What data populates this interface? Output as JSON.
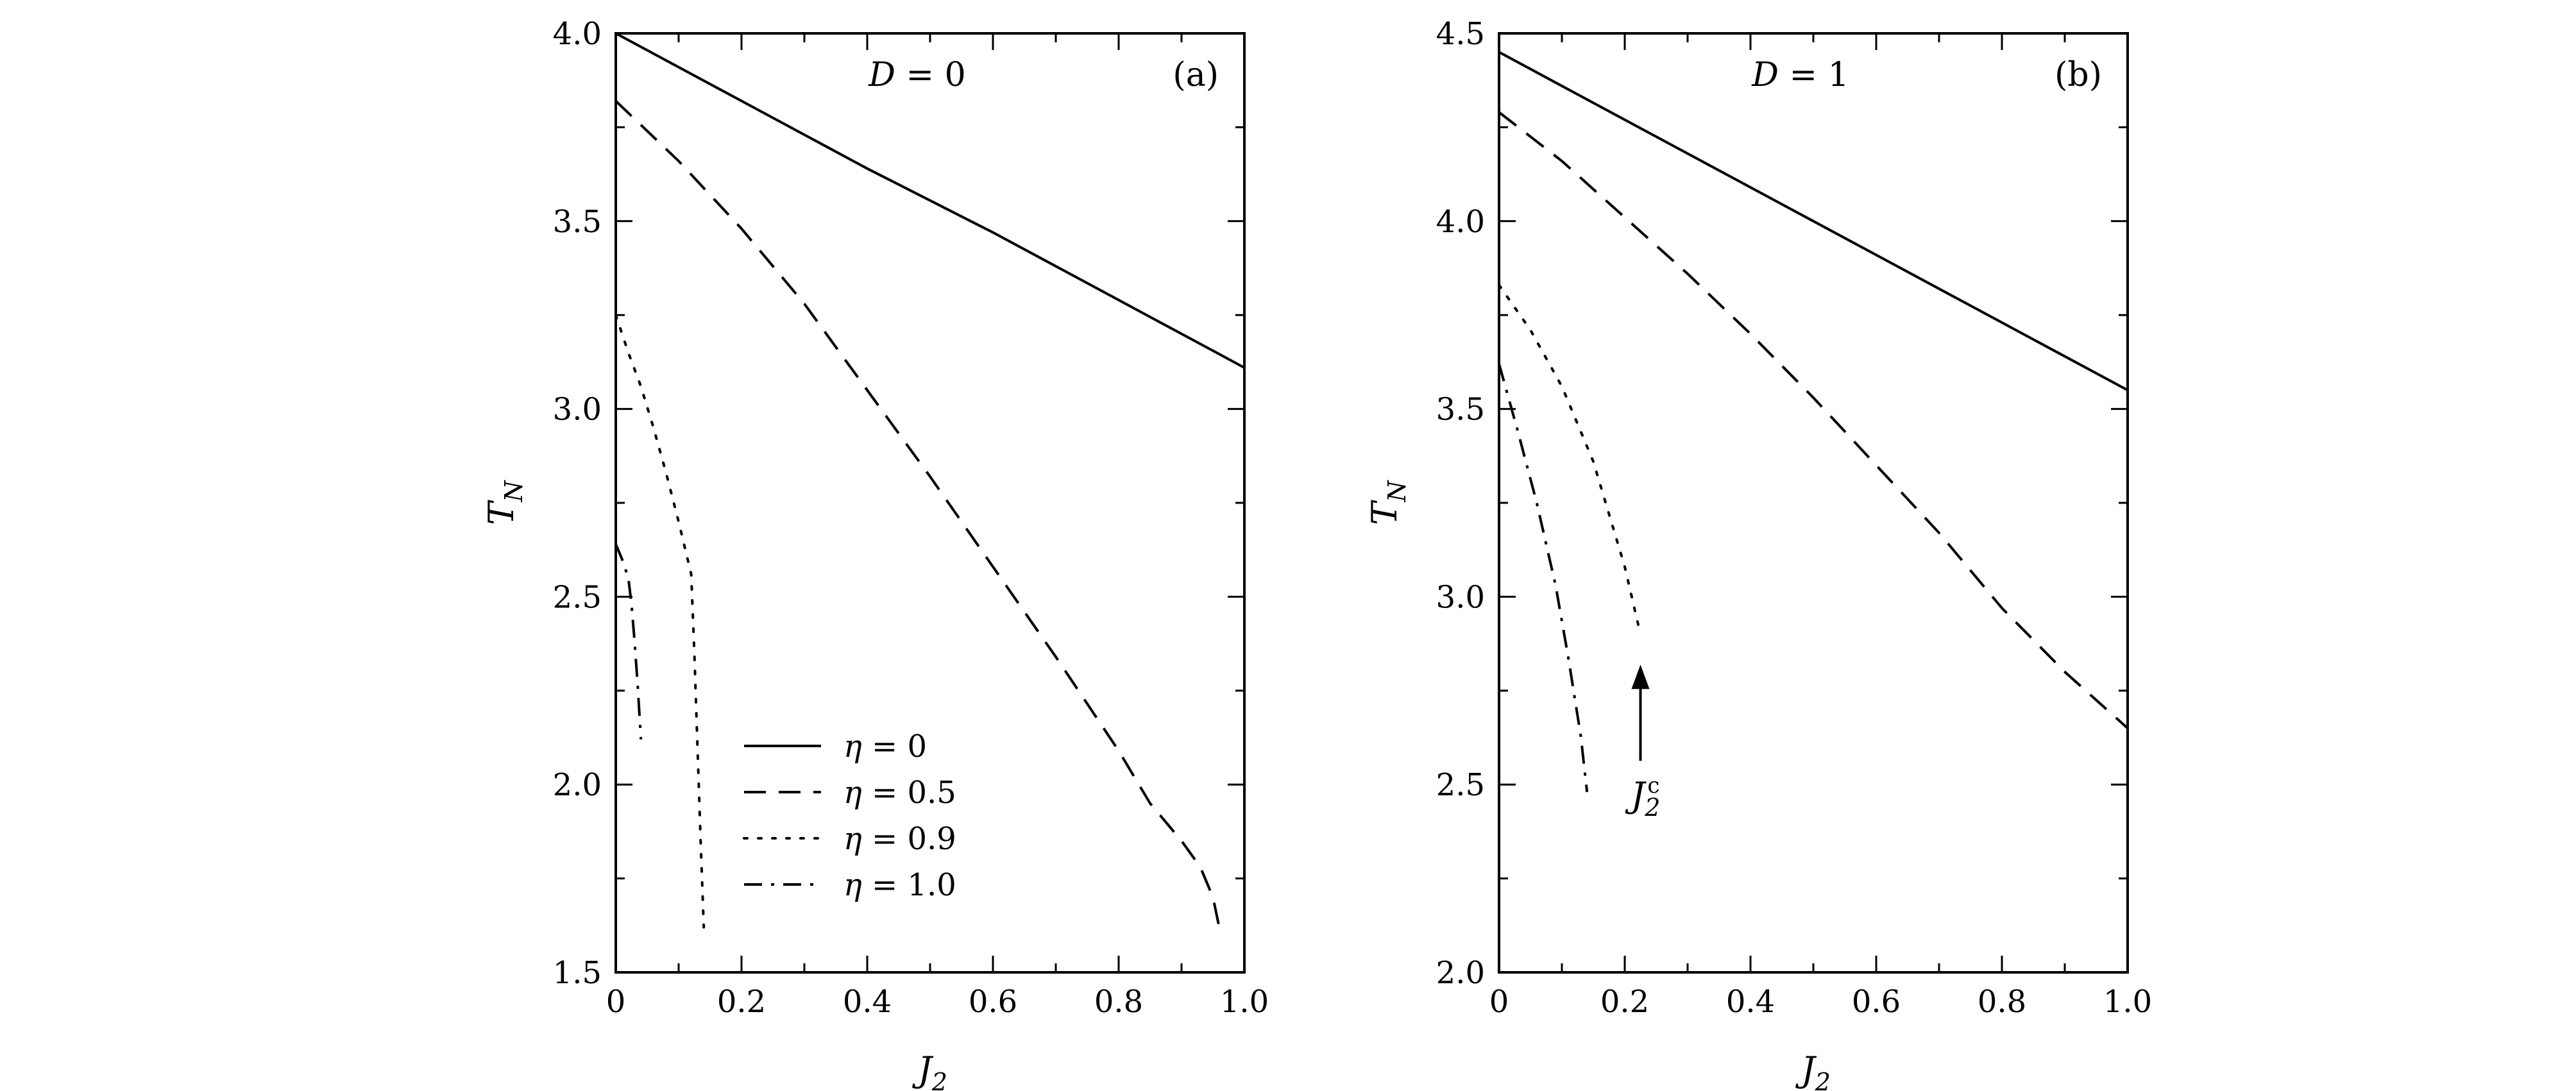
{
  "chart_data": [
    {
      "type": "line",
      "panel_label": "(a)",
      "condition": "D = 0",
      "xlabel": "J2",
      "ylabel": "TN",
      "xlim": [
        0,
        1.0
      ],
      "ylim": [
        1.5,
        4.0
      ],
      "x_ticks": [
        "0",
        "0.2",
        "0.4",
        "0.6",
        "0.8",
        "1.0"
      ],
      "y_ticks": [
        "1.5",
        "2.0",
        "2.5",
        "3.0",
        "3.5",
        "4.0"
      ],
      "legend_position": "lower-center",
      "series": [
        {
          "name": "η = 0",
          "style": "solid",
          "x": [
            0,
            0.2,
            0.4,
            0.6,
            0.8,
            1.0
          ],
          "y": [
            4.0,
            3.82,
            3.64,
            3.47,
            3.29,
            3.11
          ]
        },
        {
          "name": "η = 0.5",
          "style": "dashed",
          "x": [
            0,
            0.1,
            0.2,
            0.3,
            0.4,
            0.5,
            0.6,
            0.7,
            0.8,
            0.85,
            0.9,
            0.93,
            0.95,
            0.96
          ],
          "y": [
            3.82,
            3.66,
            3.48,
            3.28,
            3.05,
            2.82,
            2.58,
            2.34,
            2.09,
            1.95,
            1.85,
            1.78,
            1.7,
            1.62
          ]
        },
        {
          "name": "η = 0.9",
          "style": "dotted",
          "x": [
            0,
            0.02,
            0.04,
            0.06,
            0.08,
            0.1,
            0.12,
            0.125,
            0.13,
            0.135,
            0.14
          ],
          "y": [
            3.25,
            3.15,
            3.06,
            2.95,
            2.83,
            2.7,
            2.56,
            2.35,
            2.1,
            1.85,
            1.62
          ]
        },
        {
          "name": "η = 1.0",
          "style": "dashdot",
          "x": [
            0,
            0.01,
            0.02,
            0.025,
            0.03,
            0.035,
            0.04
          ],
          "y": [
            2.64,
            2.6,
            2.55,
            2.48,
            2.38,
            2.26,
            2.12
          ]
        }
      ]
    },
    {
      "type": "line",
      "panel_label": "(b)",
      "condition": "D = 1",
      "xlabel": "J2",
      "ylabel": "TN",
      "xlim": [
        0,
        1.0
      ],
      "ylim": [
        2.0,
        4.5
      ],
      "x_ticks": [
        "0",
        "0.2",
        "0.4",
        "0.6",
        "0.8",
        "1.0"
      ],
      "y_ticks": [
        "2.0",
        "2.5",
        "3.0",
        "3.5",
        "4.0",
        "4.5"
      ],
      "annotation": "J2c",
      "annotation_points_to": {
        "x": 0.225,
        "y": 2.85
      },
      "series": [
        {
          "name": "η = 0",
          "style": "solid",
          "x": [
            0,
            0.2,
            0.4,
            0.6,
            0.8,
            1.0
          ],
          "y": [
            4.45,
            4.27,
            4.09,
            3.91,
            3.73,
            3.55
          ]
        },
        {
          "name": "η = 0.5",
          "style": "dashed",
          "x": [
            0,
            0.1,
            0.2,
            0.3,
            0.4,
            0.5,
            0.6,
            0.7,
            0.8,
            0.9,
            1.0
          ],
          "y": [
            4.29,
            4.16,
            4.01,
            3.86,
            3.7,
            3.53,
            3.35,
            3.17,
            2.97,
            2.8,
            2.65
          ]
        },
        {
          "name": "η = 0.9",
          "style": "dotted",
          "x": [
            0,
            0.05,
            0.1,
            0.15,
            0.2,
            0.225
          ],
          "y": [
            3.83,
            3.71,
            3.56,
            3.36,
            3.08,
            2.9
          ]
        },
        {
          "name": "η = 1.0",
          "style": "dashdot",
          "x": [
            0,
            0.03,
            0.06,
            0.09,
            0.11,
            0.13,
            0.14
          ],
          "y": [
            3.62,
            3.44,
            3.25,
            3.03,
            2.84,
            2.63,
            2.48
          ]
        }
      ]
    }
  ]
}
